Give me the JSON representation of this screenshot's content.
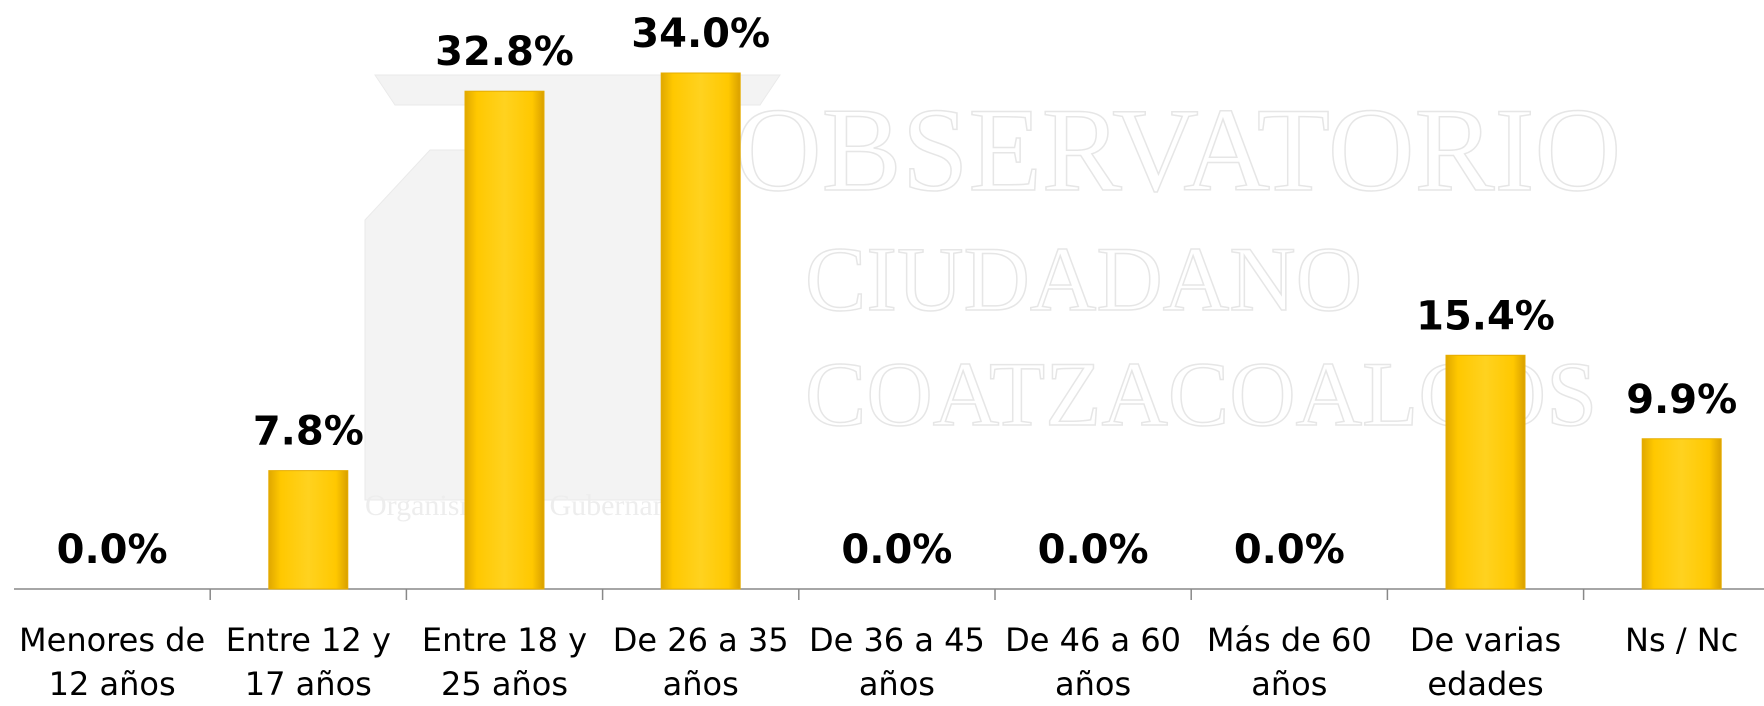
{
  "chart_data": {
    "type": "bar",
    "categories": [
      "Menores de 12 años",
      "Entre 12 y 17 años",
      "Entre 18 y 25 años",
      "De 26 a 35 años",
      "De 36 a 45 años",
      "De 46 a 60 años",
      "Más de 60 años",
      "De varias edades",
      "Ns / Nc"
    ],
    "values": [
      0,
      7.8,
      32.8,
      34.0,
      0,
      0,
      0,
      15.4,
      9.9
    ],
    "value_labels": [
      "0.0%",
      "7.8%",
      "32.8%",
      "34.0%",
      "0.0%",
      "0.0%",
      "0.0%",
      "15.4%",
      "9.9%"
    ],
    "color": "#FFC000",
    "watermark": [
      "OBSERVATORIO",
      "CIUDADANO",
      "COATZACOALCOS",
      "Organismo No Gubernamental"
    ]
  }
}
